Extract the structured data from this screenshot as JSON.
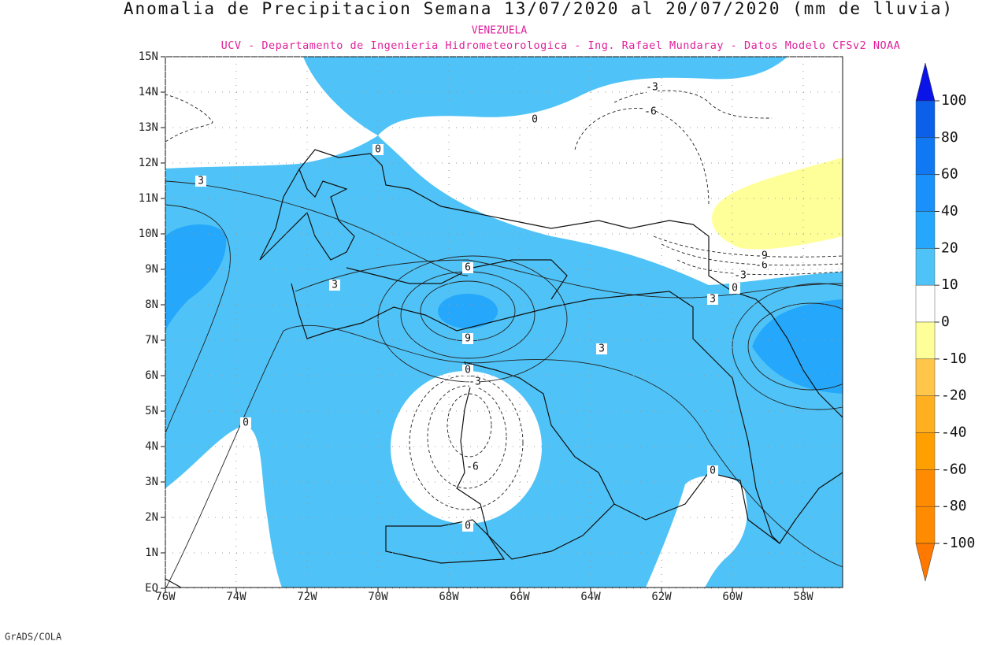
{
  "title": "Anomalia de Precipitacion Semana 13/07/2020 al 20/07/2020 (mm de lluvia)",
  "subtitle": "VENEZUELA",
  "credits": "UCV - Departamento de Ingenieria Hidrometeorologica - Ing. Rafael Mundaray - Datos Modelo CFSv2 NOAA",
  "footer": "GrADS/COLA",
  "lon_ticks": [
    {
      "value": -76,
      "label": "76W"
    },
    {
      "value": -74,
      "label": "74W"
    },
    {
      "value": -72,
      "label": "72W"
    },
    {
      "value": -70,
      "label": "70W"
    },
    {
      "value": -68,
      "label": "68W"
    },
    {
      "value": -66,
      "label": "66W"
    },
    {
      "value": -64,
      "label": "64W"
    },
    {
      "value": -62,
      "label": "62W"
    },
    {
      "value": -60,
      "label": "60W"
    },
    {
      "value": -58,
      "label": "58W"
    }
  ],
  "lat_ticks": [
    {
      "value": 15,
      "label": "15N"
    },
    {
      "value": 14,
      "label": "14N"
    },
    {
      "value": 13,
      "label": "13N"
    },
    {
      "value": 12,
      "label": "12N"
    },
    {
      "value": 11,
      "label": "11N"
    },
    {
      "value": 10,
      "label": "10N"
    },
    {
      "value": 9,
      "label": "9N"
    },
    {
      "value": 8,
      "label": "8N"
    },
    {
      "value": 7,
      "label": "7N"
    },
    {
      "value": 6,
      "label": "6N"
    },
    {
      "value": 5,
      "label": "5N"
    },
    {
      "value": 4,
      "label": "4N"
    },
    {
      "value": 3,
      "label": "3N"
    },
    {
      "value": 2,
      "label": "2N"
    },
    {
      "value": 1,
      "label": "1N"
    },
    {
      "value": 0,
      "label": "EQ"
    }
  ],
  "colorbar": {
    "levels": [
      100,
      80,
      60,
      40,
      20,
      10,
      0,
      -10,
      -20,
      -40,
      -60,
      -80,
      -100
    ],
    "colors": [
      "#0a14e6",
      "#0b5fe8",
      "#0f78f2",
      "#1a90fa",
      "#25a8fb",
      "#4fc3f7",
      "#ffffff",
      "#ffff9a",
      "#ffc64a",
      "#ffb020",
      "#ffa000",
      "#ff8c00",
      "#ff7800"
    ]
  },
  "contour_labels": [
    0,
    0,
    -3,
    -6,
    3,
    3,
    6,
    9,
    3,
    3,
    0,
    -3,
    -6,
    -9,
    0,
    0,
    0,
    0,
    -3,
    -6
  ]
}
